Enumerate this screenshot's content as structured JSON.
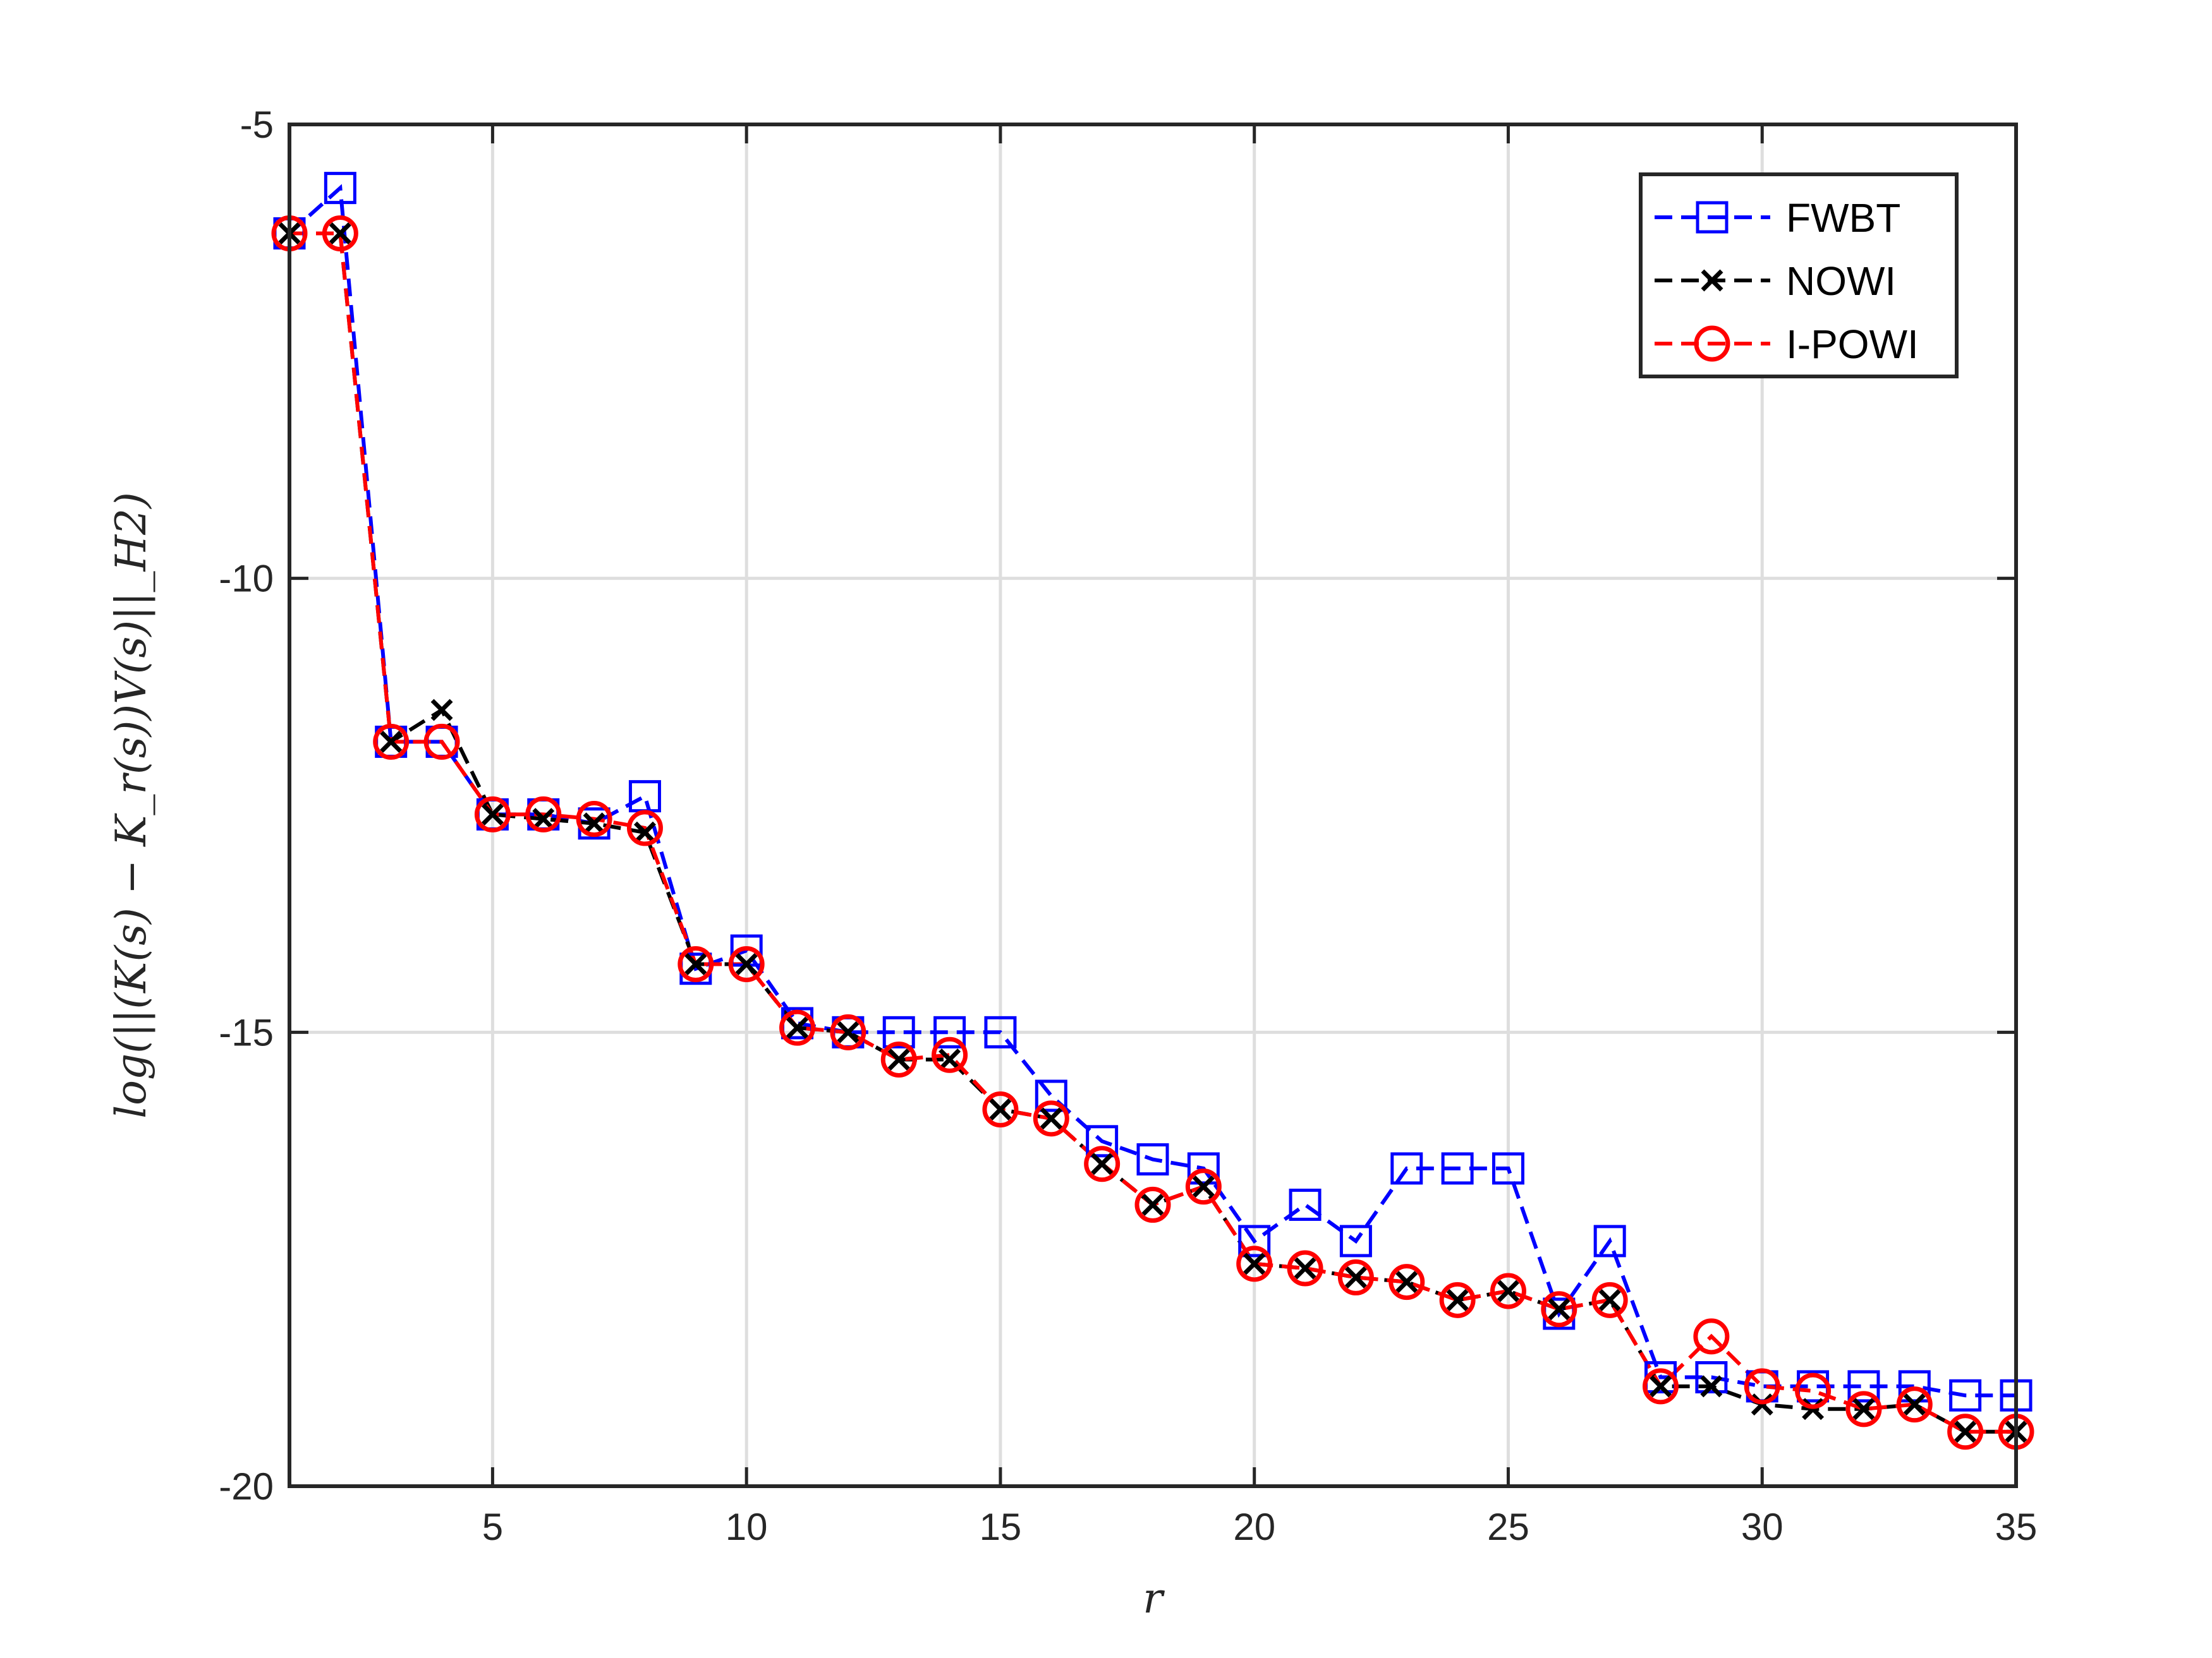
{
  "chart_data": {
    "type": "line",
    "title": "",
    "xlabel": "r",
    "ylabel": "log(||(K(s) − K_r(s))V(s)||_H2)",
    "xlim": [
      1,
      35
    ],
    "ylim": [
      -20,
      -5
    ],
    "xticks": [
      5,
      10,
      15,
      20,
      25,
      30,
      35
    ],
    "yticks": [
      -5,
      -10,
      -15,
      -20
    ],
    "x_tick_labels": [
      "5",
      "10",
      "15",
      "20",
      "25",
      "30",
      "35"
    ],
    "y_tick_labels": [
      "-5",
      "-10",
      "-15",
      "-20"
    ],
    "grid": true,
    "legend_position": "top-right",
    "x": [
      1,
      2,
      3,
      4,
      5,
      6,
      7,
      8,
      9,
      10,
      11,
      12,
      13,
      14,
      15,
      16,
      17,
      18,
      19,
      20,
      21,
      22,
      23,
      24,
      25,
      26,
      27,
      28,
      29,
      30,
      31,
      32,
      33,
      34,
      35
    ],
    "series": [
      {
        "name": "FWBT",
        "color": "#0000ff",
        "marker": "square",
        "values": [
          -6.2,
          -5.7,
          -11.8,
          -11.8,
          -12.6,
          -12.6,
          -12.7,
          -12.4,
          -14.3,
          -14.1,
          -14.9,
          -15.0,
          -15.0,
          -15.0,
          -15.0,
          -15.7,
          -16.2,
          -16.4,
          -16.5,
          -17.3,
          -16.9,
          -17.3,
          -16.5,
          -16.5,
          -16.5,
          -18.1,
          -17.3,
          -18.8,
          -18.8,
          -18.9,
          -18.9,
          -18.9,
          -18.9,
          -19.0,
          -19.0
        ]
      },
      {
        "name": "NOWI",
        "color": "#000000",
        "marker": "x",
        "values": [
          -6.2,
          -6.2,
          -11.8,
          -11.45,
          -12.6,
          -12.65,
          -12.7,
          -12.8,
          -14.25,
          -14.25,
          -14.95,
          -15.0,
          -15.3,
          -15.3,
          -15.85,
          -15.95,
          -16.45,
          -16.9,
          -16.7,
          -17.55,
          -17.6,
          -17.7,
          -17.75,
          -17.95,
          -17.85,
          -18.05,
          -17.95,
          -18.9,
          -18.9,
          -19.1,
          -19.15,
          -19.15,
          -19.1,
          -19.4,
          -19.4
        ]
      },
      {
        "name": "I-POWI",
        "color": "#ff0000",
        "marker": "circle",
        "values": [
          -6.2,
          -6.2,
          -11.8,
          -11.8,
          -12.6,
          -12.6,
          -12.65,
          -12.75,
          -14.25,
          -14.25,
          -14.95,
          -15.0,
          -15.3,
          -15.25,
          -15.85,
          -15.95,
          -16.45,
          -16.9,
          -16.7,
          -17.55,
          -17.6,
          -17.7,
          -17.75,
          -17.95,
          -17.85,
          -18.05,
          -17.95,
          -18.9,
          -18.35,
          -18.9,
          -18.95,
          -19.15,
          -19.1,
          -19.4,
          -19.4
        ]
      }
    ]
  }
}
